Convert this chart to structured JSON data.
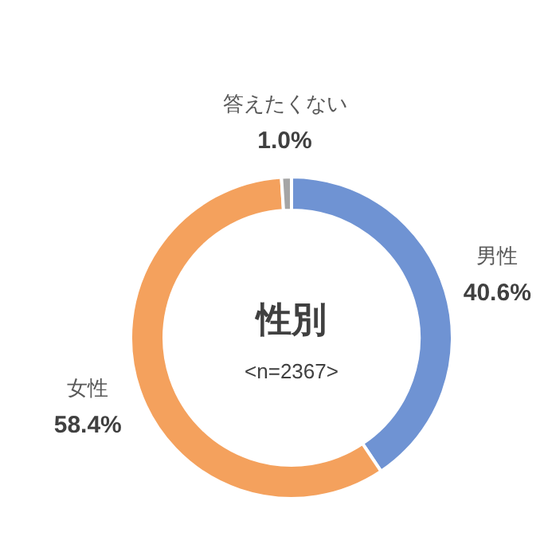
{
  "chart_data": {
    "type": "donut",
    "title": "性別",
    "annotations": [
      "<n=2367>"
    ],
    "categories": [
      "男性",
      "女性",
      "答えたくない"
    ],
    "values": [
      40.6,
      58.4,
      1.0
    ],
    "value_labels": [
      "40.6%",
      "58.4%",
      "1.0%"
    ],
    "colors": [
      "#6f93d3",
      "#f4a15d",
      "#a5a5a5"
    ]
  }
}
